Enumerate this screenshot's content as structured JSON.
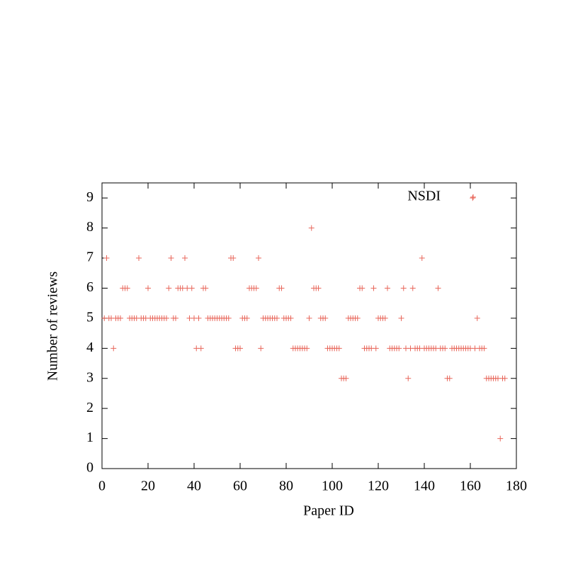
{
  "chart_data": {
    "type": "scatter",
    "xlabel": "Paper ID",
    "ylabel": "Number of reviews",
    "xlim": [
      0,
      180
    ],
    "ylim": [
      0,
      9.5
    ],
    "xticks": [
      0,
      20,
      40,
      60,
      80,
      100,
      120,
      140,
      160,
      180
    ],
    "yticks": [
      0,
      1,
      2,
      3,
      4,
      5,
      6,
      7,
      8,
      9
    ],
    "legend": "upper right",
    "series": [
      {
        "name": "NSDI",
        "color": "#e8665a",
        "x": [
          1,
          2,
          3,
          4,
          5,
          6,
          7,
          8,
          9,
          10,
          11,
          12,
          13,
          14,
          15,
          16,
          17,
          18,
          19,
          20,
          21,
          22,
          23,
          24,
          25,
          26,
          27,
          28,
          29,
          30,
          31,
          32,
          33,
          34,
          35,
          36,
          37,
          38,
          39,
          40,
          41,
          42,
          43,
          44,
          45,
          46,
          47,
          48,
          49,
          50,
          51,
          52,
          53,
          54,
          55,
          56,
          57,
          58,
          59,
          60,
          61,
          62,
          63,
          64,
          65,
          66,
          67,
          68,
          69,
          70,
          71,
          72,
          73,
          74,
          75,
          76,
          77,
          78,
          79,
          80,
          81,
          82,
          83,
          84,
          85,
          86,
          87,
          88,
          89,
          90,
          91,
          92,
          93,
          94,
          95,
          96,
          97,
          98,
          99,
          100,
          101,
          102,
          103,
          104,
          105,
          106,
          107,
          108,
          109,
          110,
          111,
          112,
          113,
          114,
          115,
          116,
          117,
          118,
          119,
          120,
          121,
          122,
          123,
          124,
          125,
          126,
          127,
          128,
          129,
          130,
          131,
          132,
          133,
          134,
          135,
          136,
          137,
          138,
          139,
          140,
          141,
          142,
          143,
          144,
          145,
          146,
          147,
          148,
          149,
          150,
          151,
          152,
          153,
          154,
          155,
          156,
          157,
          158,
          159,
          160,
          161,
          162,
          163,
          164,
          165,
          166,
          167,
          168,
          169,
          170,
          171,
          172,
          173,
          174,
          175
        ],
        "values": [
          5,
          7,
          5,
          5,
          4,
          5,
          5,
          5,
          6,
          6,
          6,
          5,
          5,
          5,
          5,
          7,
          5,
          5,
          5,
          6,
          5,
          5,
          5,
          5,
          5,
          5,
          5,
          5,
          6,
          7,
          5,
          5,
          6,
          6,
          6,
          7,
          6,
          5,
          6,
          5,
          4,
          5,
          4,
          6,
          6,
          5,
          5,
          5,
          5,
          5,
          5,
          5,
          5,
          5,
          5,
          7,
          7,
          4,
          4,
          4,
          5,
          5,
          5,
          6,
          6,
          6,
          6,
          7,
          4,
          5,
          5,
          5,
          5,
          5,
          5,
          5,
          6,
          6,
          5,
          5,
          5,
          5,
          4,
          4,
          4,
          4,
          4,
          4,
          4,
          5,
          8,
          6,
          6,
          6,
          5,
          5,
          5,
          4,
          4,
          4,
          4,
          4,
          4,
          3,
          3,
          3,
          5,
          5,
          5,
          5,
          5,
          6,
          6,
          4,
          4,
          4,
          4,
          6,
          4,
          5,
          5,
          5,
          5,
          6,
          4,
          4,
          4,
          4,
          4,
          5,
          6,
          4,
          3,
          4,
          6,
          4,
          4,
          4,
          7,
          4,
          4,
          4,
          4,
          4,
          4,
          6,
          4,
          4,
          4,
          3,
          3,
          4,
          4,
          4,
          4,
          4,
          4,
          4,
          4,
          4,
          9,
          4,
          5,
          4,
          4,
          4,
          3,
          3,
          3,
          3,
          3,
          3,
          1,
          3,
          3
        ]
      }
    ]
  }
}
